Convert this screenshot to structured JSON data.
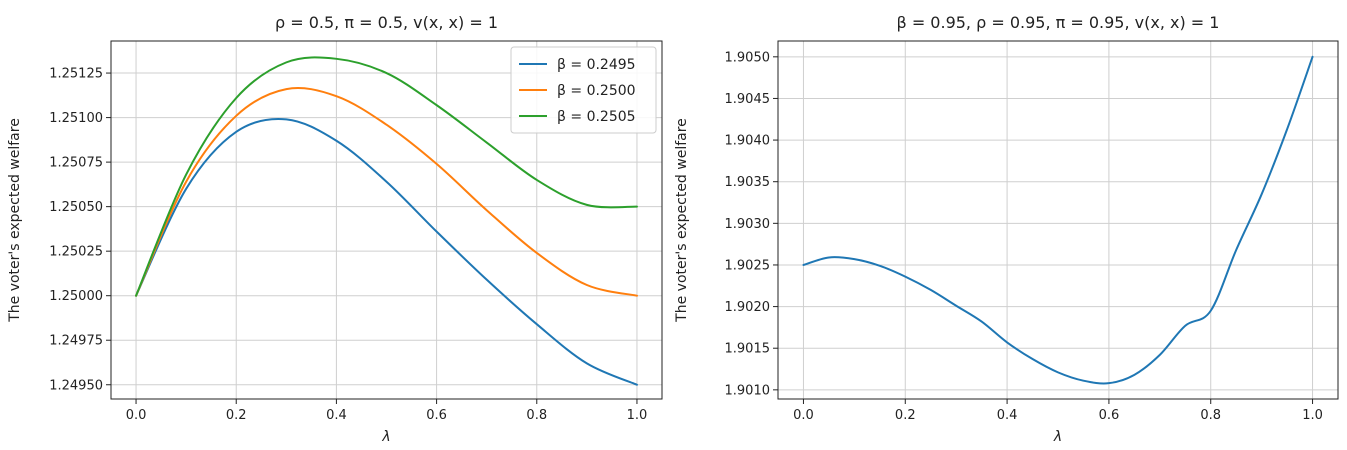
{
  "chart_data": [
    {
      "type": "line",
      "title": "ρ = 0.5, π = 0.5, v(x, x) = 1",
      "xlabel": "λ",
      "ylabel": "The voter's expected welfare",
      "xlim": [
        -0.05,
        1.05
      ],
      "ylim": [
        1.24942,
        1.25143
      ],
      "x_ticks": [
        0.0,
        0.2,
        0.4,
        0.6,
        0.8,
        1.0
      ],
      "x_tick_labels": [
        "0.0",
        "0.2",
        "0.4",
        "0.6",
        "0.8",
        "1.0"
      ],
      "y_ticks": [
        1.2495,
        1.24975,
        1.25,
        1.25025,
        1.2505,
        1.25075,
        1.251,
        1.25125
      ],
      "y_tick_labels": [
        "1.24950",
        "1.24975",
        "1.25000",
        "1.25025",
        "1.25050",
        "1.25075",
        "1.25100",
        "1.25125"
      ],
      "grid": true,
      "legend_position": "top-right",
      "x": [
        0.0,
        0.1,
        0.2,
        0.3,
        0.4,
        0.5,
        0.6,
        0.7,
        0.8,
        0.9,
        1.0
      ],
      "series": [
        {
          "name": "β = 0.2495",
          "color": "#1f77b4",
          "values": [
            1.25,
            1.2506,
            1.25092,
            1.25099,
            1.25087,
            1.25064,
            1.25036,
            1.25009,
            1.24984,
            1.24962,
            1.2495
          ]
        },
        {
          "name": "β = 0.2500",
          "color": "#ff7f0e",
          "values": [
            1.25,
            1.25064,
            1.25101,
            1.25116,
            1.25112,
            1.25096,
            1.25074,
            1.25048,
            1.25024,
            1.25006,
            1.25
          ]
        },
        {
          "name": "β = 0.2505",
          "color": "#2ca02c",
          "values": [
            1.25,
            1.25068,
            1.25111,
            1.25131,
            1.25133,
            1.25125,
            1.25107,
            1.25086,
            1.25065,
            1.25051,
            1.2505
          ]
        }
      ]
    },
    {
      "type": "line",
      "title": "β = 0.95, ρ = 0.95, π = 0.95, v(x, x) = 1",
      "xlabel": "λ",
      "ylabel": "The voter's expected welfare",
      "xlim": [
        -0.05,
        1.05
      ],
      "ylim": [
        1.90089,
        1.90519
      ],
      "x_ticks": [
        0.0,
        0.2,
        0.4,
        0.6,
        0.8,
        1.0
      ],
      "x_tick_labels": [
        "0.0",
        "0.2",
        "0.4",
        "0.6",
        "0.8",
        "1.0"
      ],
      "y_ticks": [
        1.901,
        1.9015,
        1.902,
        1.9025,
        1.903,
        1.9035,
        1.904,
        1.9045,
        1.905
      ],
      "y_tick_labels": [
        "1.9010",
        "1.9015",
        "1.9020",
        "1.9025",
        "1.9030",
        "1.9035",
        "1.9040",
        "1.9045",
        "1.9050"
      ],
      "grid": true,
      "legend_position": "none",
      "x": [
        0.0,
        0.05,
        0.1,
        0.15,
        0.2,
        0.25,
        0.3,
        0.35,
        0.4,
        0.45,
        0.5,
        0.55,
        0.6,
        0.65,
        0.7,
        0.75,
        0.8,
        0.85,
        0.9,
        0.95,
        1.0
      ],
      "series": [
        {
          "name": "",
          "color": "#1f77b4",
          "values": [
            1.9025,
            1.90259,
            1.90257,
            1.90249,
            1.90236,
            1.9022,
            1.90201,
            1.90182,
            1.90157,
            1.90137,
            1.90121,
            1.90111,
            1.90108,
            1.90118,
            1.90142,
            1.90177,
            1.90195,
            1.90268,
            1.90335,
            1.90413,
            1.905
          ]
        }
      ]
    }
  ]
}
